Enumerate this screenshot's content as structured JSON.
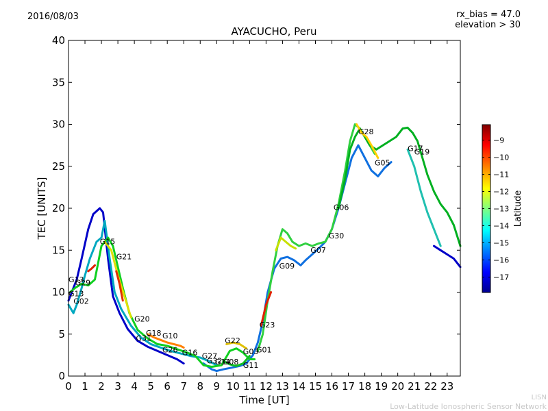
{
  "header": {
    "date": "2016/08/03",
    "station_title": "AYACUCHO, Peru",
    "rx_bias": "rx_bias = 47.0",
    "elevation": "elevation > 30"
  },
  "footer": {
    "credit_short": "LISN",
    "credit_long": "Low-Latitude Ionospheric Sensor Network"
  },
  "chart_data": {
    "type": "line",
    "title": "AYACUCHO, Peru",
    "xlabel": "Time [UT]",
    "ylabel": "TEC [UNITS]",
    "xlim": [
      0,
      23.8
    ],
    "ylim": [
      0,
      40
    ],
    "xticks": [
      0,
      1,
      2,
      3,
      4,
      5,
      6,
      7,
      8,
      9,
      10,
      11,
      12,
      13,
      14,
      15,
      16,
      17,
      18,
      19,
      20,
      21,
      22,
      23
    ],
    "yticks": [
      0,
      5,
      10,
      15,
      20,
      25,
      30,
      35,
      40
    ],
    "grid": false,
    "colorbar": {
      "label": "Latitude",
      "range": [
        -17.9,
        -8.1
      ],
      "ticks": [
        -9,
        -10,
        -11,
        -12,
        -13,
        -14,
        -15,
        -16,
        -17
      ],
      "colors": [
        "#00008f",
        "#0000ff",
        "#0080ff",
        "#00ffff",
        "#80ff80",
        "#ffff00",
        "#ff8000",
        "#ff0000",
        "#800000"
      ]
    },
    "series": [
      {
        "color": "#0000c8",
        "x": [
          0.0,
          0.5,
          0.8,
          1.2,
          1.5,
          1.9,
          2.1,
          2.4,
          2.7,
          3.1,
          3.6,
          4.2,
          4.8,
          5.4,
          6.0,
          6.6,
          7.0
        ],
        "y": [
          9.0,
          11.5,
          14.0,
          17.5,
          19.3,
          20.0,
          19.5,
          14.0,
          9.5,
          7.5,
          5.6,
          4.2,
          3.5,
          3.0,
          2.5,
          2.0,
          1.5
        ]
      },
      {
        "color": "#1070e0",
        "x": [
          8.2,
          8.7,
          9.0,
          9.4,
          9.9,
          10.4,
          10.8,
          11.2,
          11.5,
          11.8,
          12.1,
          12.5,
          12.9,
          13.3,
          13.7,
          14.1,
          14.4,
          14.8,
          15.2,
          15.6,
          16.0,
          16.4,
          16.8,
          17.2,
          17.6,
          18.0,
          18.4,
          18.8,
          19.2,
          19.6
        ],
        "y": [
          1.5,
          0.8,
          0.6,
          0.8,
          1.0,
          1.2,
          1.5,
          2.5,
          4.0,
          6.5,
          10.0,
          12.8,
          14.0,
          14.2,
          13.8,
          13.2,
          13.8,
          14.5,
          15.2,
          16.0,
          17.5,
          20.0,
          23.0,
          26.0,
          27.5,
          26.0,
          24.5,
          23.8,
          24.8,
          25.5
        ]
      },
      {
        "color": "#00a8c0",
        "x": [
          0.0,
          0.3,
          0.5,
          0.8,
          1.0,
          1.3,
          1.7,
          2.0,
          2.2,
          2.5,
          2.8,
          3.2,
          3.8,
          4.4,
          5.0,
          5.6,
          6.2,
          6.8,
          7.4,
          8.0,
          8.5,
          9.0
        ],
        "y": [
          8.5,
          7.5,
          8.5,
          10.5,
          12.0,
          14.0,
          16.0,
          16.5,
          18.5,
          14.0,
          10.0,
          8.0,
          6.0,
          4.6,
          3.8,
          3.4,
          3.0,
          2.7,
          2.4,
          2.2,
          1.8,
          1.3
        ]
      },
      {
        "color": "#10d020",
        "x": [
          0.1,
          0.4,
          0.8,
          1.2,
          1.6,
          2.0,
          2.4,
          2.7,
          3.0,
          3.3,
          3.7,
          4.2,
          4.8,
          5.4,
          6.0,
          6.6,
          7.2,
          7.7,
          8.2,
          8.7,
          9.3,
          9.8,
          10.2,
          10.6,
          11.0,
          11.3
        ],
        "y": [
          10.0,
          10.5,
          11.0,
          10.8,
          11.5,
          15.5,
          16.5,
          15.5,
          13.0,
          10.5,
          7.5,
          5.5,
          4.5,
          3.8,
          3.6,
          3.2,
          2.8,
          2.4,
          1.3,
          1.1,
          1.3,
          3.0,
          3.3,
          2.8,
          2.0,
          2.0
        ]
      },
      {
        "color": "#30d040",
        "x": [
          11.5,
          11.8,
          12.1,
          12.4,
          12.7,
          13.0,
          13.3,
          13.6,
          14.0,
          14.4,
          14.8,
          15.2,
          15.6,
          16.0,
          16.4,
          16.8,
          17.1,
          17.4,
          17.7,
          18.0,
          18.3,
          18.6
        ],
        "y": [
          3.0,
          5.0,
          9.0,
          12.5,
          15.5,
          17.5,
          17.0,
          16.0,
          15.5,
          15.8,
          15.5,
          15.8,
          16.0,
          17.5,
          20.5,
          24.5,
          28.0,
          30.0,
          29.5,
          28.5,
          27.5,
          26.5
        ]
      },
      {
        "color": "#00b020",
        "x": [
          16.4,
          16.8,
          17.1,
          17.4,
          17.7,
          18.0,
          18.3,
          18.7,
          19.1,
          19.5,
          19.9,
          20.3,
          20.6,
          20.9,
          21.2,
          21.5,
          21.8,
          22.2,
          22.6,
          23.0,
          23.4,
          23.8
        ],
        "y": [
          20.0,
          23.5,
          27.0,
          28.5,
          29.5,
          28.5,
          27.5,
          27.0,
          27.5,
          28.0,
          28.5,
          29.5,
          29.6,
          29.0,
          28.0,
          26.0,
          24.0,
          22.0,
          20.5,
          19.5,
          18.0,
          15.5
        ]
      },
      {
        "color": "#ffd000",
        "x": [
          17.5,
          17.8,
          18.1,
          18.4,
          18.8
        ],
        "y": [
          30.0,
          29.0,
          28.5,
          27.5,
          26.0
        ]
      },
      {
        "color": "#c8e000",
        "x": [
          12.6,
          12.9,
          13.2,
          13.5,
          13.8
        ],
        "y": [
          15.0,
          16.5,
          16.0,
          15.5,
          15.2
        ]
      },
      {
        "color": "#20c0b0",
        "x": [
          20.6,
          21.0,
          21.4,
          21.8,
          22.2,
          22.6
        ],
        "y": [
          27.0,
          25.0,
          22.0,
          19.5,
          17.5,
          15.5
        ]
      },
      {
        "color": "#0000c8",
        "x": [
          22.2,
          22.6,
          23.0,
          23.4,
          23.8
        ],
        "y": [
          15.5,
          15.0,
          14.5,
          14.0,
          13.0
        ]
      },
      {
        "color": "#e0e000",
        "x": [
          2.2,
          2.6,
          3.0,
          3.4,
          3.8
        ],
        "y": [
          16.0,
          15.0,
          12.0,
          9.5,
          7.0
        ]
      },
      {
        "color": "#e03000",
        "x": [
          2.9,
          3.1,
          3.3
        ],
        "y": [
          12.5,
          11.0,
          9.0
        ]
      },
      {
        "color": "#e02000",
        "x": [
          1.2,
          1.4,
          1.6
        ],
        "y": [
          12.5,
          12.8,
          13.2
        ]
      },
      {
        "color": "#ff8000",
        "x": [
          4.8,
          5.2,
          5.6,
          6.0,
          6.4,
          6.8,
          7.0
        ],
        "y": [
          5.0,
          4.6,
          4.3,
          4.0,
          3.8,
          3.6,
          3.4
        ]
      },
      {
        "color": "#e0c000",
        "x": [
          9.6,
          10.0,
          10.4,
          10.8
        ],
        "y": [
          3.8,
          4.0,
          3.8,
          3.3
        ]
      },
      {
        "color": "#e02000",
        "x": [
          11.7,
          12.0,
          12.3
        ],
        "y": [
          6.0,
          8.5,
          10.0
        ]
      },
      {
        "color": "#10c020",
        "x": [
          9.4,
          9.8,
          10.2,
          10.6,
          11.0
        ],
        "y": [
          1.8,
          1.4,
          1.2,
          1.5,
          2.4
        ]
      }
    ],
    "labels": [
      {
        "text": "G13",
        "x": 0.0,
        "y": 11.2
      },
      {
        "text": "G29",
        "x": 0.4,
        "y": 10.8
      },
      {
        "text": "G13",
        "x": 0.0,
        "y": 9.5
      },
      {
        "text": "G02",
        "x": 0.3,
        "y": 8.6
      },
      {
        "text": "G15",
        "x": 1.9,
        "y": 15.7
      },
      {
        "text": "G21",
        "x": 2.9,
        "y": 13.9
      },
      {
        "text": "G20",
        "x": 4.0,
        "y": 6.5
      },
      {
        "text": "G18",
        "x": 4.7,
        "y": 4.8
      },
      {
        "text": "G10",
        "x": 5.7,
        "y": 4.5
      },
      {
        "text": "G31",
        "x": 4.1,
        "y": 4.2
      },
      {
        "text": "G26",
        "x": 5.7,
        "y": 2.8
      },
      {
        "text": "G16",
        "x": 6.9,
        "y": 2.5
      },
      {
        "text": "G27",
        "x": 8.1,
        "y": 2.1
      },
      {
        "text": "G32",
        "x": 8.4,
        "y": 1.5
      },
      {
        "text": "G14",
        "x": 8.9,
        "y": 1.4
      },
      {
        "text": "G08",
        "x": 9.4,
        "y": 1.4
      },
      {
        "text": "G22",
        "x": 9.5,
        "y": 3.9
      },
      {
        "text": "G03",
        "x": 10.6,
        "y": 2.6
      },
      {
        "text": "G01",
        "x": 11.4,
        "y": 2.8
      },
      {
        "text": "G11",
        "x": 10.6,
        "y": 1.0
      },
      {
        "text": "G23",
        "x": 11.6,
        "y": 5.8
      },
      {
        "text": "G09",
        "x": 12.8,
        "y": 12.8
      },
      {
        "text": "G07",
        "x": 14.7,
        "y": 14.7
      },
      {
        "text": "G30",
        "x": 15.8,
        "y": 16.4
      },
      {
        "text": "G06",
        "x": 16.1,
        "y": 19.8
      },
      {
        "text": "G28",
        "x": 17.6,
        "y": 28.8
      },
      {
        "text": "G05",
        "x": 18.6,
        "y": 25.1
      },
      {
        "text": "G17",
        "x": 20.6,
        "y": 26.8
      },
      {
        "text": "G19",
        "x": 21.0,
        "y": 26.4
      }
    ]
  }
}
